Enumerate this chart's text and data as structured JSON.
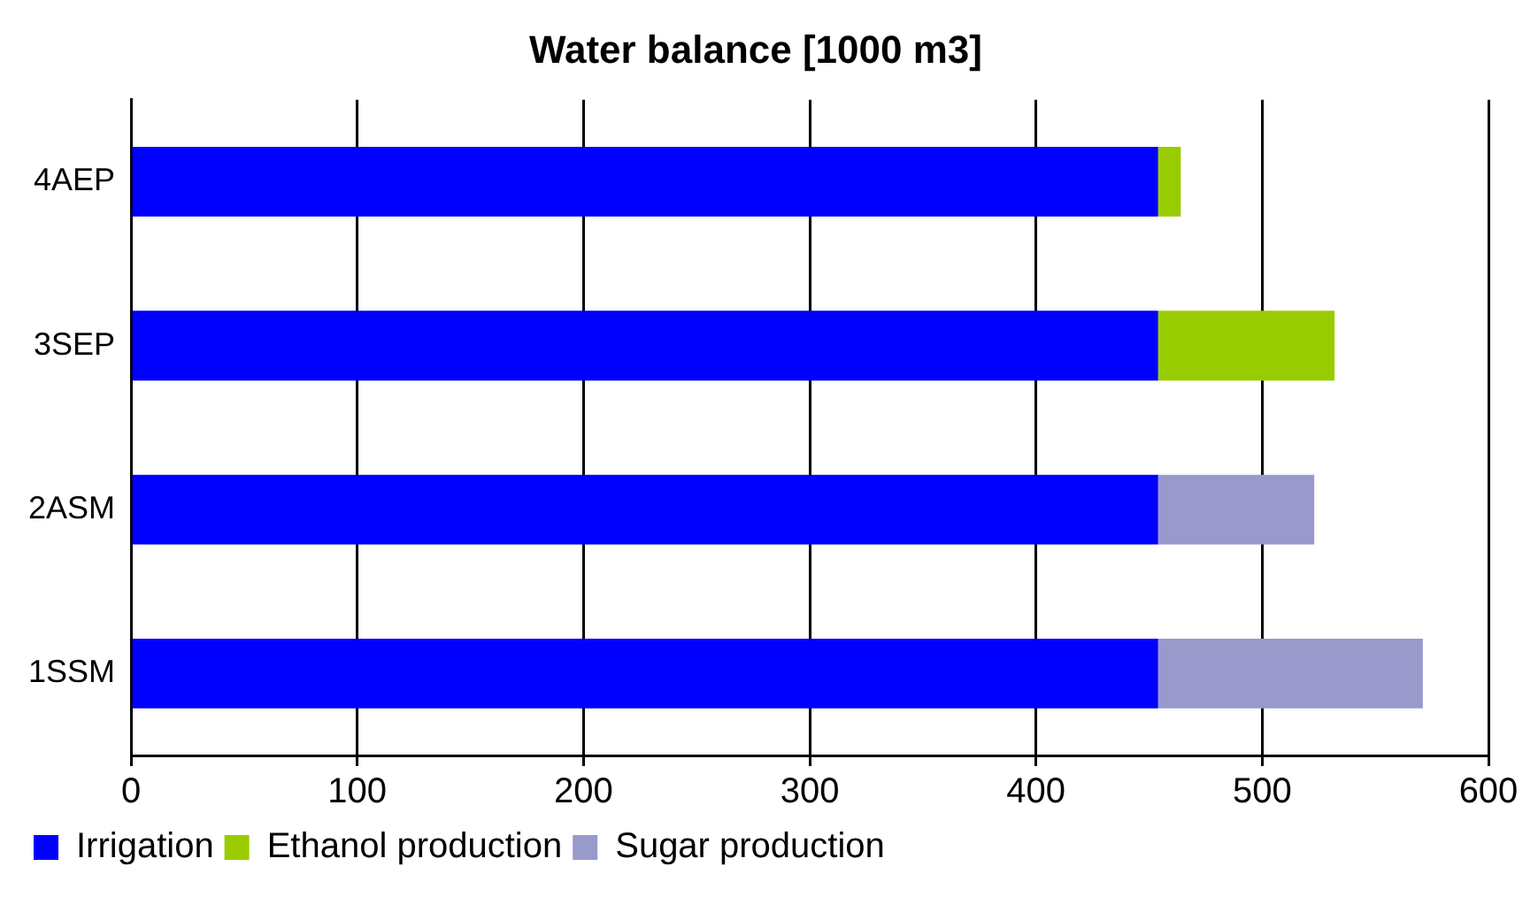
{
  "chart_data": {
    "type": "bar",
    "orientation": "horizontal",
    "stacked": true,
    "title": "Water balance [1000 m3]",
    "categories": [
      "4AEP",
      "3SEP",
      "2ASM",
      "1SSM"
    ],
    "series": [
      {
        "name": "Irrigation",
        "color": "#0000ff",
        "values": [
          454,
          454,
          454,
          454
        ]
      },
      {
        "name": "Ethanol production",
        "color": "#99cc00",
        "values": [
          10,
          78,
          null,
          null
        ]
      },
      {
        "name": "Sugar production",
        "color": "#9999cc",
        "values": [
          null,
          null,
          69,
          117
        ]
      }
    ],
    "xlim": [
      0,
      600
    ],
    "xticks": [
      0,
      100,
      200,
      300,
      400,
      500,
      600
    ],
    "grid": "x",
    "legend": "bottom"
  }
}
